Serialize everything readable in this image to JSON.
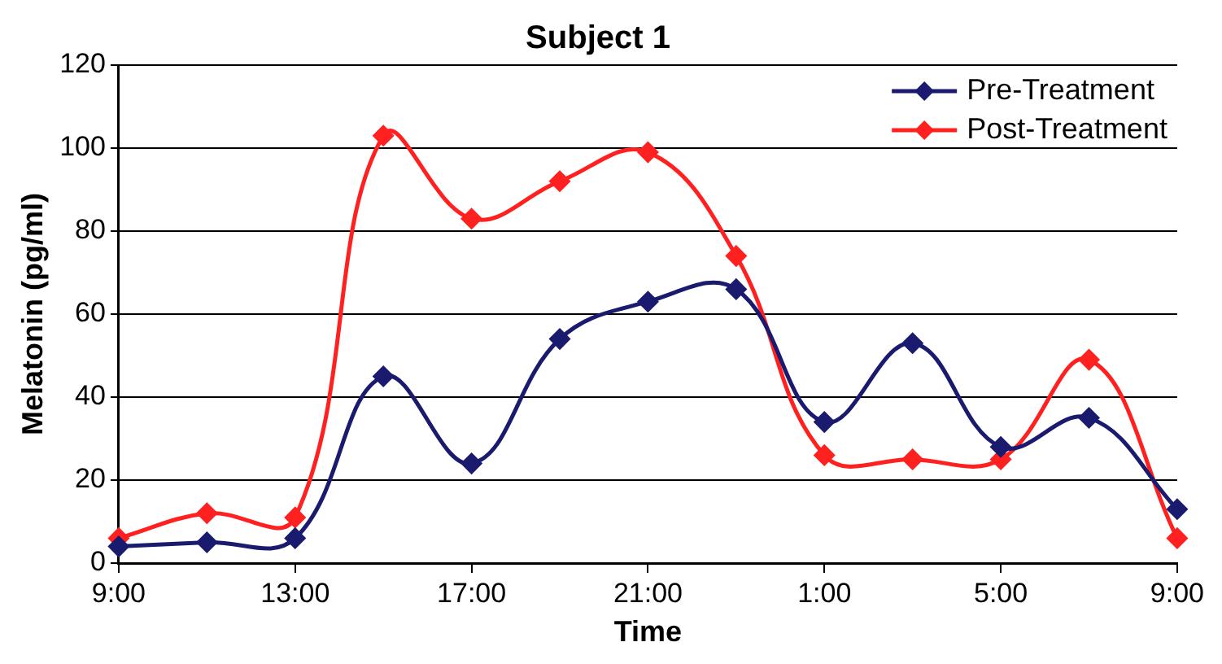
{
  "chart_data": {
    "type": "line",
    "title": "Subject 1",
    "xlabel": "Time",
    "ylabel": "Melatonin (pg/ml)",
    "categories": [
      "9:00",
      null,
      "13:00",
      null,
      "17:00",
      null,
      "21:00",
      null,
      "1:00",
      null,
      "5:00",
      null,
      "9:00"
    ],
    "series": [
      {
        "name": "Pre-Treatment",
        "color": "#1a1a6e",
        "values": [
          4,
          5,
          6,
          45,
          24,
          54,
          63,
          66,
          34,
          53,
          28,
          35,
          13
        ]
      },
      {
        "name": "Post-Treatment",
        "color": "#ff2020",
        "values": [
          6,
          12,
          11,
          103,
          83,
          92,
          99,
          74,
          26,
          25,
          25,
          49,
          6
        ]
      }
    ],
    "ylim": [
      0,
      120
    ],
    "yticks": [
      0,
      20,
      40,
      60,
      80,
      100,
      120
    ],
    "grid": "y",
    "legend": "top right",
    "marker": "diamond",
    "line_style": "solid"
  }
}
